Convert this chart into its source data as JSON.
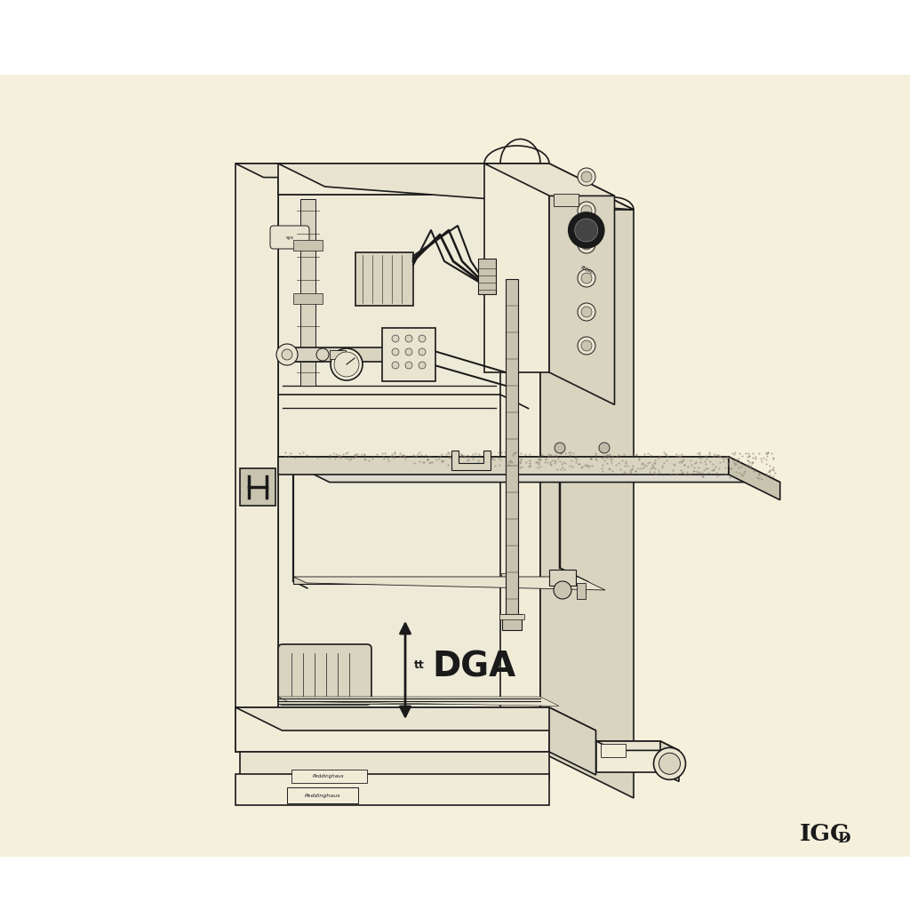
{
  "bg_cream": "#f5f0dc",
  "bg_white": "#ffffff",
  "line_color": "#1a1a1a",
  "fill_light": "#f0ecd8",
  "fill_mid": "#e8e4d0",
  "fill_dark": "#d8d4c0",
  "fill_darker": "#c8c4b0",
  "fill_table": "#dedad0",
  "figsize": [
    10.24,
    10.24
  ],
  "dpi": 100,
  "dga_text": "DGA",
  "igc_text": "IGC",
  "igc_sub": "D"
}
